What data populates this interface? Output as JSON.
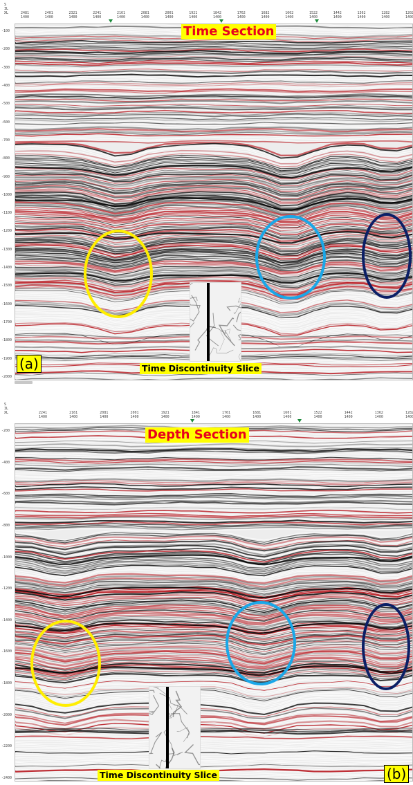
{
  "panel_a": {
    "title": "Time Section",
    "slice_label": "Time Discontinuity Slice",
    "panel_label": "(a)",
    "header_left": [
      "S",
      "IL",
      "XL"
    ],
    "ticks": [
      {
        "top": "2481",
        "bottom": "1400"
      },
      {
        "top": "2401",
        "bottom": "1400"
      },
      {
        "top": "2321",
        "bottom": "1400"
      },
      {
        "top": "2241",
        "bottom": "1400"
      },
      {
        "top": "2161",
        "bottom": "1400"
      },
      {
        "top": "2081",
        "bottom": "1400"
      },
      {
        "top": "2001",
        "bottom": "1400"
      },
      {
        "top": "1921",
        "bottom": "1400"
      },
      {
        "top": "1842",
        "bottom": "1400"
      },
      {
        "top": "1762",
        "bottom": "1400"
      },
      {
        "top": "1682",
        "bottom": "1400"
      },
      {
        "top": "1602",
        "bottom": "1400"
      },
      {
        "top": "1522",
        "bottom": "1400"
      },
      {
        "top": "1442",
        "bottom": "1400"
      },
      {
        "top": "1362",
        "bottom": "1400"
      },
      {
        "top": "1282",
        "bottom": "1400"
      },
      {
        "top": "1202",
        "bottom": "1400"
      }
    ],
    "y_labels": [
      "-100",
      "-200",
      "-300",
      "-400",
      "-500",
      "-600",
      "-700",
      "-800",
      "-900",
      "-1000",
      "-1100",
      "-1200",
      "-1300",
      "-1400",
      "-1500",
      "-1600",
      "-1700",
      "-1800",
      "-1900",
      "-2000"
    ]
  },
  "panel_b": {
    "title": "Depth Section",
    "slice_label": "Time Discontinuity Slice",
    "panel_label": "(b)",
    "header_left": [
      "S",
      "IL",
      "XL"
    ],
    "ticks": [
      {
        "top": "2241",
        "bottom": "1400"
      },
      {
        "top": "2161",
        "bottom": "1400"
      },
      {
        "top": "2081",
        "bottom": "1400"
      },
      {
        "top": "2001",
        "bottom": "1400"
      },
      {
        "top": "1921",
        "bottom": "1400"
      },
      {
        "top": "1841",
        "bottom": "1400"
      },
      {
        "top": "1761",
        "bottom": "1400"
      },
      {
        "top": "1681",
        "bottom": "1400"
      },
      {
        "top": "1601",
        "bottom": "1400"
      },
      {
        "top": "1522",
        "bottom": "1400"
      },
      {
        "top": "1442",
        "bottom": "1400"
      },
      {
        "top": "1362",
        "bottom": "1400"
      },
      {
        "top": "1282",
        "bottom": "1400"
      }
    ],
    "y_labels": [
      "-200",
      "-400",
      "-600",
      "-800",
      "-1000",
      "-1200",
      "-1400",
      "-1600",
      "-1800",
      "-2000",
      "-2200",
      "-2400"
    ]
  },
  "colors": {
    "title_bg": "#ffff00",
    "title_text": "#e8001c",
    "yellow_circle": "#ffee00",
    "cyan_circle": "#1aa7e8",
    "navy_circle": "#0b1f66"
  }
}
